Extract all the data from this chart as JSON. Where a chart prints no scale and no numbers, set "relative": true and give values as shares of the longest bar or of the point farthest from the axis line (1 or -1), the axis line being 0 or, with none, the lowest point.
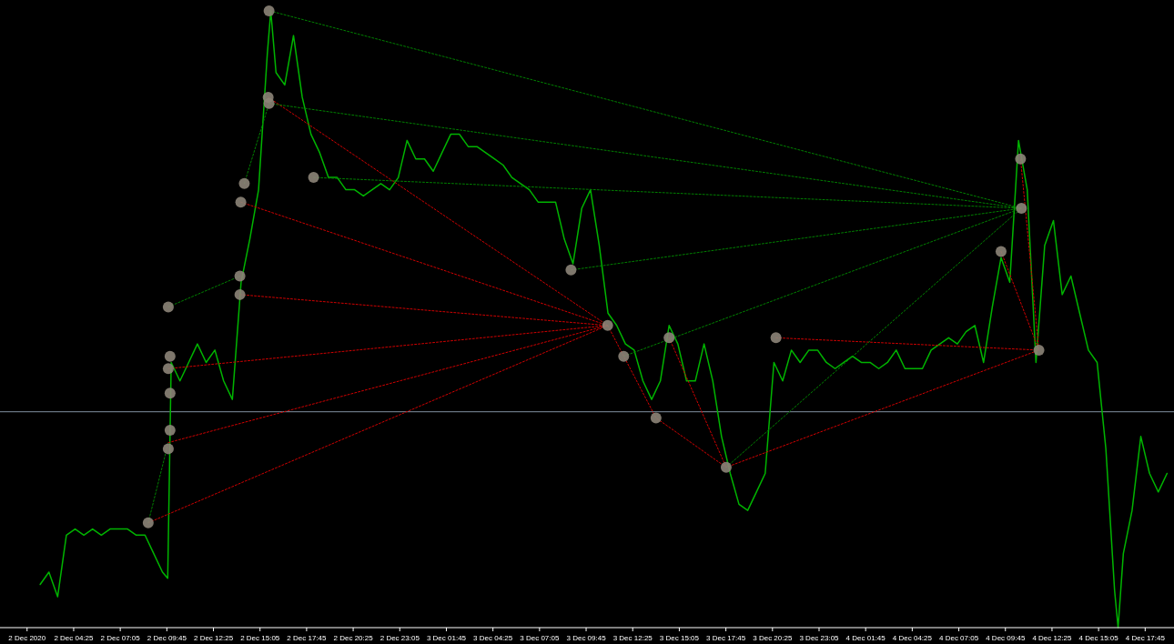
{
  "chart_data": {
    "type": "line",
    "relative": true,
    "xlim": [
      "2020-12-02T00:12",
      "2020-12-04T19:24"
    ],
    "xticks": [
      {
        "value": "2020-12-02T01:45",
        "label": "2 Dec 2020"
      },
      {
        "value": "2020-12-02T04:25",
        "label": "2 Dec 04:25"
      },
      {
        "value": "2020-12-02T07:05",
        "label": "2 Dec 07:05"
      },
      {
        "value": "2020-12-02T09:45",
        "label": "2 Dec 09:45"
      },
      {
        "value": "2020-12-02T12:25",
        "label": "2 Dec 12:25"
      },
      {
        "value": "2020-12-02T15:05",
        "label": "2 Dec 15:05"
      },
      {
        "value": "2020-12-02T17:45",
        "label": "2 Dec 17:45"
      },
      {
        "value": "2020-12-02T20:25",
        "label": "2 Dec 20:25"
      },
      {
        "value": "2020-12-02T23:05",
        "label": "2 Dec 23:05"
      },
      {
        "value": "2020-12-03T01:45",
        "label": "3 Dec 01:45"
      },
      {
        "value": "2020-12-03T04:25",
        "label": "3 Dec 04:25"
      },
      {
        "value": "2020-12-03T07:05",
        "label": "3 Dec 07:05"
      },
      {
        "value": "2020-12-03T09:45",
        "label": "3 Dec 09:45"
      },
      {
        "value": "2020-12-03T12:25",
        "label": "3 Dec 12:25"
      },
      {
        "value": "2020-12-03T15:05",
        "label": "3 Dec 15:05"
      },
      {
        "value": "2020-12-03T17:45",
        "label": "3 Dec 17:45"
      },
      {
        "value": "2020-12-03T20:25",
        "label": "3 Dec 20:25"
      },
      {
        "value": "2020-12-03T23:05",
        "label": "3 Dec 23:05"
      },
      {
        "value": "2020-12-04T01:45",
        "label": "4 Dec 01:45"
      },
      {
        "value": "2020-12-04T04:25",
        "label": "4 Dec 04:25"
      },
      {
        "value": "2020-12-04T07:05",
        "label": "4 Dec 07:05"
      },
      {
        "value": "2020-12-04T09:45",
        "label": "4 Dec 09:45"
      },
      {
        "value": "2020-12-04T12:25",
        "label": "4 Dec 12:25"
      },
      {
        "value": "2020-12-04T15:05",
        "label": "4 Dec 15:05"
      },
      {
        "value": "2020-12-04T17:45",
        "label": "4 Dec 17:45"
      }
    ],
    "ref_lines": [
      {
        "axis": "y",
        "value": 0.35,
        "color": "#8090a0"
      }
    ],
    "series": [
      {
        "color": "#00b400",
        "line_style": "solid",
        "x": [
          "2020-12-02T02:30",
          "2020-12-02T03:00",
          "2020-12-02T03:30",
          "2020-12-02T04:00",
          "2020-12-02T04:30",
          "2020-12-02T05:00",
          "2020-12-02T05:30",
          "2020-12-02T06:00",
          "2020-12-02T06:30",
          "2020-12-02T07:00",
          "2020-12-02T07:30",
          "2020-12-02T08:00",
          "2020-12-02T08:30",
          "2020-12-02T09:00",
          "2020-12-02T09:30",
          "2020-12-02T09:48",
          "2020-12-02T10:00",
          "2020-12-02T10:30",
          "2020-12-02T11:00",
          "2020-12-02T11:30",
          "2020-12-02T12:00",
          "2020-12-02T12:30",
          "2020-12-02T13:00",
          "2020-12-02T13:30",
          "2020-12-02T14:00",
          "2020-12-02T14:30",
          "2020-12-02T15:00",
          "2020-12-02T15:30",
          "2020-12-02T15:42",
          "2020-12-02T16:00",
          "2020-12-02T16:30",
          "2020-12-02T17:00",
          "2020-12-02T17:30",
          "2020-12-02T18:00",
          "2020-12-02T18:30",
          "2020-12-02T19:00",
          "2020-12-02T19:30",
          "2020-12-02T20:00",
          "2020-12-02T20:30",
          "2020-12-02T21:00",
          "2020-12-02T21:30",
          "2020-12-02T22:00",
          "2020-12-02T22:30",
          "2020-12-02T23:00",
          "2020-12-02T23:30",
          "2020-12-03T00:00",
          "2020-12-03T00:30",
          "2020-12-03T01:00",
          "2020-12-03T01:30",
          "2020-12-03T02:00",
          "2020-12-03T02:30",
          "2020-12-03T03:00",
          "2020-12-03T03:30",
          "2020-12-03T04:00",
          "2020-12-03T04:30",
          "2020-12-03T05:00",
          "2020-12-03T05:30",
          "2020-12-03T06:00",
          "2020-12-03T06:30",
          "2020-12-03T07:00",
          "2020-12-03T07:30",
          "2020-12-03T08:00",
          "2020-12-03T08:30",
          "2020-12-03T09:00",
          "2020-12-03T09:30",
          "2020-12-03T10:00",
          "2020-12-03T10:30",
          "2020-12-03T11:00",
          "2020-12-03T11:30",
          "2020-12-03T12:00",
          "2020-12-03T12:30",
          "2020-12-03T13:00",
          "2020-12-03T13:30",
          "2020-12-03T14:00",
          "2020-12-03T14:30",
          "2020-12-03T15:00",
          "2020-12-03T15:30",
          "2020-12-03T16:00",
          "2020-12-03T16:30",
          "2020-12-03T17:00",
          "2020-12-03T17:30",
          "2020-12-03T18:00",
          "2020-12-03T18:30",
          "2020-12-03T19:00",
          "2020-12-03T19:30",
          "2020-12-03T20:00",
          "2020-12-03T20:30",
          "2020-12-03T21:00",
          "2020-12-03T21:30",
          "2020-12-03T22:00",
          "2020-12-03T22:30",
          "2020-12-03T23:00",
          "2020-12-03T23:30",
          "2020-12-04T00:00",
          "2020-12-04T00:30",
          "2020-12-04T01:00",
          "2020-12-04T01:30",
          "2020-12-04T02:00",
          "2020-12-04T02:30",
          "2020-12-04T03:00",
          "2020-12-04T03:30",
          "2020-12-04T04:00",
          "2020-12-04T04:30",
          "2020-12-04T05:00",
          "2020-12-04T05:30",
          "2020-12-04T06:00",
          "2020-12-04T06:30",
          "2020-12-04T07:00",
          "2020-12-04T07:30",
          "2020-12-04T08:00",
          "2020-12-04T08:30",
          "2020-12-04T09:00",
          "2020-12-04T09:30",
          "2020-12-04T10:00",
          "2020-12-04T10:30",
          "2020-12-04T11:00",
          "2020-12-04T11:30",
          "2020-12-04T12:00",
          "2020-12-04T12:30",
          "2020-12-04T13:00",
          "2020-12-04T13:30",
          "2020-12-04T14:00",
          "2020-12-04T14:30",
          "2020-12-04T15:00",
          "2020-12-04T15:30",
          "2020-12-04T16:00",
          "2020-12-04T16:12",
          "2020-12-04T16:30",
          "2020-12-04T17:00",
          "2020-12-04T17:30",
          "2020-12-04T18:00",
          "2020-12-04T18:30",
          "2020-12-04T19:00"
        ],
        "values": [
          0.07,
          0.09,
          0.05,
          0.15,
          0.16,
          0.15,
          0.16,
          0.15,
          0.16,
          0.16,
          0.16,
          0.15,
          0.15,
          0.12,
          0.09,
          0.08,
          0.43,
          0.4,
          0.43,
          0.46,
          0.43,
          0.45,
          0.4,
          0.37,
          0.56,
          0.63,
          0.71,
          0.93,
          1,
          0.9,
          0.88,
          0.96,
          0.86,
          0.8,
          0.77,
          0.73,
          0.73,
          0.71,
          0.71,
          0.7,
          0.71,
          0.72,
          0.71,
          0.73,
          0.79,
          0.76,
          0.76,
          0.74,
          0.77,
          0.8,
          0.8,
          0.78,
          0.78,
          0.77,
          0.76,
          0.75,
          0.73,
          0.72,
          0.71,
          0.69,
          0.69,
          0.69,
          0.63,
          0.59,
          0.68,
          0.71,
          0.62,
          0.51,
          0.49,
          0.46,
          0.45,
          0.4,
          0.37,
          0.4,
          0.49,
          0.46,
          0.4,
          0.4,
          0.46,
          0.4,
          0.31,
          0.25,
          0.2,
          0.19,
          0.22,
          0.25,
          0.43,
          0.4,
          0.45,
          0.43,
          0.45,
          0.45,
          0.43,
          0.42,
          0.43,
          0.44,
          0.43,
          0.43,
          0.42,
          0.43,
          0.45,
          0.42,
          0.42,
          0.42,
          0.45,
          0.46,
          0.47,
          0.46,
          0.48,
          0.49,
          0.43,
          0.52,
          0.6,
          0.56,
          0.79,
          0.71,
          0.43,
          0.62,
          0.66,
          0.54,
          0.57,
          0.51,
          0.45,
          0.43,
          0.29,
          0.06,
          0,
          0.12,
          0.19,
          0.31,
          0.25,
          0.22,
          0.25
        ]
      },
      {
        "color": "#d00000",
        "line_style": "dotted",
        "x": [
          "2020-12-02T09:50",
          "2020-12-03T10:59"
        ],
        "values": [
          0.42,
          0.49
        ]
      },
      {
        "color": "#d00000",
        "line_style": "dotted",
        "x": [
          "2020-12-02T13:56",
          "2020-12-03T10:59"
        ],
        "values": [
          0.54,
          0.49
        ]
      },
      {
        "color": "#d00000",
        "line_style": "dotted",
        "x": [
          "2020-12-02T13:59",
          "2020-12-03T10:59"
        ],
        "values": [
          0.69,
          0.49
        ]
      },
      {
        "color": "#d00000",
        "line_style": "dotted",
        "x": [
          "2020-12-02T15:33",
          "2020-12-03T10:59"
        ],
        "values": [
          0.86,
          0.49
        ]
      },
      {
        "color": "#d00000",
        "line_style": "dotted",
        "x": [
          "2020-12-02T09:50",
          "2020-12-03T10:59"
        ],
        "values": [
          0.3,
          0.49
        ]
      },
      {
        "color": "#d00000",
        "line_style": "dotted",
        "x": [
          "2020-12-02T08:41",
          "2020-12-03T10:59"
        ],
        "values": [
          0.17,
          0.49
        ]
      },
      {
        "color": "#d00000",
        "line_style": "dotted",
        "x": [
          "2020-12-03T10:59",
          "2020-12-03T13:45",
          "2020-12-03T17:46",
          "2020-12-04T11:40"
        ],
        "values": [
          0.49,
          0.34,
          0.26,
          0.45
        ]
      },
      {
        "color": "#d00000",
        "line_style": "dotted",
        "x": [
          "2020-12-03T14:30",
          "2020-12-03T17:46"
        ],
        "values": [
          0.47,
          0.26
        ]
      },
      {
        "color": "#d00000",
        "line_style": "dotted",
        "x": [
          "2020-12-03T20:37",
          "2020-12-04T11:40"
        ],
        "values": [
          0.47,
          0.45
        ]
      },
      {
        "color": "#d00000",
        "line_style": "dotted",
        "x": [
          "2020-12-04T09:30",
          "2020-12-04T11:40"
        ],
        "values": [
          0.61,
          0.45
        ]
      },
      {
        "color": "#d00000",
        "line_style": "dotted",
        "x": [
          "2020-12-04T10:37",
          "2020-12-04T11:40"
        ],
        "values": [
          0.76,
          0.45
        ]
      },
      {
        "color": "#008000",
        "line_style": "dotted",
        "x": [
          "2020-12-02T15:39",
          "2020-12-04T10:40"
        ],
        "values": [
          1.0,
          0.68
        ]
      },
      {
        "color": "#008000",
        "line_style": "dotted",
        "x": [
          "2020-12-02T15:36",
          "2020-12-04T10:40"
        ],
        "values": [
          0.85,
          0.68
        ]
      },
      {
        "color": "#008000",
        "line_style": "dotted",
        "x": [
          "2020-12-02T18:09",
          "2020-12-04T10:40"
        ],
        "values": [
          0.73,
          0.68
        ]
      },
      {
        "color": "#008000",
        "line_style": "dotted",
        "x": [
          "2020-12-03T08:53",
          "2020-12-04T10:40"
        ],
        "values": [
          0.58,
          0.68
        ]
      },
      {
        "color": "#008000",
        "line_style": "dotted",
        "x": [
          "2020-12-03T11:54",
          "2020-12-04T10:40"
        ],
        "values": [
          0.44,
          0.68
        ]
      },
      {
        "color": "#008000",
        "line_style": "dotted",
        "x": [
          "2020-12-03T17:46",
          "2020-12-04T10:40"
        ],
        "values": [
          0.26,
          0.68
        ]
      },
      {
        "color": "#008000",
        "line_style": "dotted",
        "x": [
          "2020-12-02T08:41",
          "2020-12-02T09:50"
        ],
        "values": [
          0.17,
          0.3
        ]
      },
      {
        "color": "#008000",
        "line_style": "dotted",
        "x": [
          "2020-12-02T09:50",
          "2020-12-02T13:56"
        ],
        "values": [
          0.52,
          0.57
        ]
      },
      {
        "color": "#008000",
        "line_style": "dotted",
        "x": [
          "2020-12-02T14:11",
          "2020-12-02T15:36"
        ],
        "values": [
          0.72,
          0.85
        ]
      },
      {
        "type": "scatter",
        "marker": "circle",
        "color": "#8c8478",
        "x": [
          "2020-12-02T08:41",
          "2020-12-02T09:50",
          "2020-12-02T09:56",
          "2020-12-02T09:50",
          "2020-12-02T09:56",
          "2020-12-02T09:56",
          "2020-12-02T09:50",
          "2020-12-02T13:56",
          "2020-12-02T13:56",
          "2020-12-02T13:59",
          "2020-12-02T14:11",
          "2020-12-02T15:36",
          "2020-12-02T15:33",
          "2020-12-02T15:36",
          "2020-12-02T18:09",
          "2020-12-03T08:53",
          "2020-12-03T10:59",
          "2020-12-03T11:54",
          "2020-12-03T13:45",
          "2020-12-03T14:30",
          "2020-12-03T17:46",
          "2020-12-03T20:37",
          "2020-12-04T09:30",
          "2020-12-04T10:37",
          "2020-12-04T10:40",
          "2020-12-04T11:40"
        ],
        "values": [
          0.17,
          0.52,
          0.44,
          0.42,
          0.38,
          0.32,
          0.29,
          0.57,
          0.54,
          0.69,
          0.72,
          1.0,
          0.86,
          0.85,
          0.73,
          0.58,
          0.49,
          0.44,
          0.34,
          0.47,
          0.26,
          0.47,
          0.61,
          0.76,
          0.68,
          0.45
        ]
      }
    ]
  }
}
